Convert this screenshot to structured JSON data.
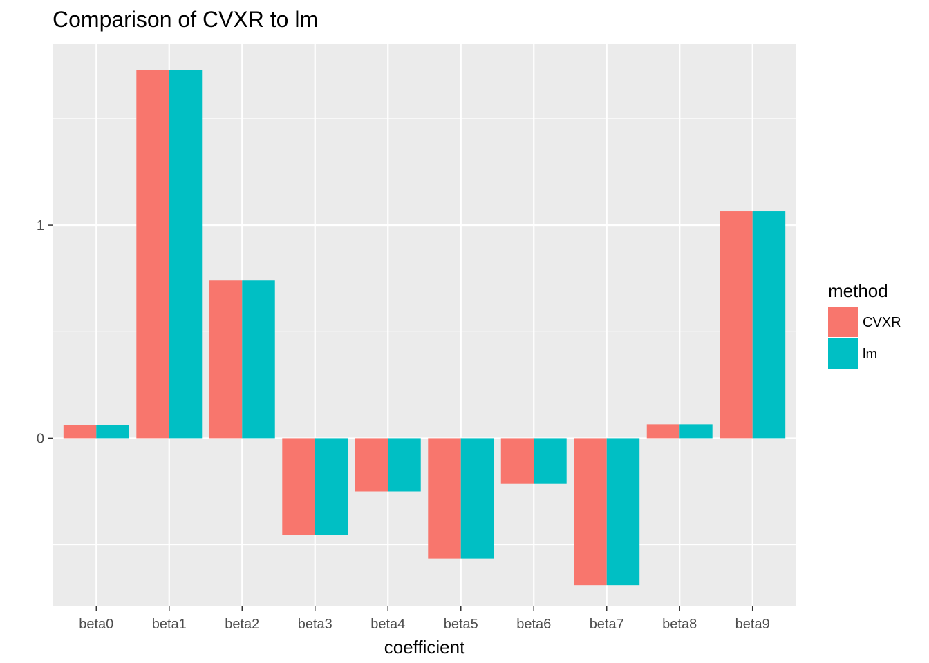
{
  "chart_data": {
    "type": "bar",
    "title": "Comparison of CVXR to lm",
    "xlabel": "coefficient",
    "ylabel": "",
    "categories": [
      "beta0",
      "beta1",
      "beta2",
      "beta3",
      "beta4",
      "beta5",
      "beta6",
      "beta7",
      "beta8",
      "beta9"
    ],
    "series": [
      {
        "name": "CVXR",
        "color": "#F8766D",
        "values": [
          0.06,
          1.73,
          0.74,
          -0.455,
          -0.25,
          -0.565,
          -0.215,
          -0.69,
          0.065,
          1.065
        ]
      },
      {
        "name": "lm",
        "color": "#00BFC4",
        "values": [
          0.06,
          1.73,
          0.74,
          -0.455,
          -0.25,
          -0.565,
          -0.215,
          -0.69,
          0.065,
          1.065
        ]
      }
    ],
    "ylim": [
      -0.79,
      1.85
    ],
    "y_major_ticks": [
      0,
      1
    ],
    "y_minor_ticks": [
      -0.5,
      0.5,
      1.5
    ],
    "grid": true,
    "panel_background": "#EBEBEB",
    "legend": {
      "title": "method",
      "position": "right"
    }
  }
}
